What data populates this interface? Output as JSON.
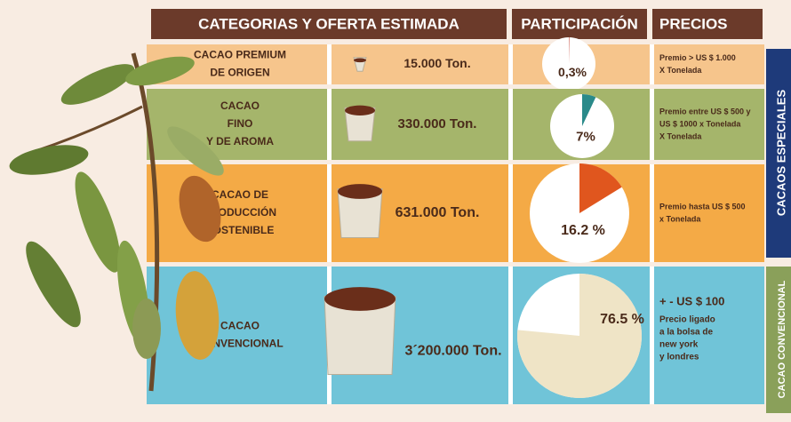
{
  "header": {
    "categories": "CATEGORIAS Y OFERTA ESTIMADA",
    "share": "PARTICIPACIÓN",
    "prices": "PRECIOS"
  },
  "rows": [
    {
      "category": [
        "CACAO PREMIUM",
        "DE ORIGEN"
      ],
      "supply": "15.000 Ton.",
      "share": {
        "value": 0.3,
        "label": "0,3%"
      },
      "price": [
        "Premio > US $ 1.000",
        "X Tonelada"
      ]
    },
    {
      "category": [
        "CACAO",
        "FINO",
        "Y DE AROMA"
      ],
      "supply": "330.000 Ton.",
      "share": {
        "value": 7,
        "label": "7%"
      },
      "price": [
        "Premio entre US $ 500 y",
        "US $ 1000 x Tonelada",
        "X Tonelada"
      ]
    },
    {
      "category": [
        "CACAO DE",
        "PRODUCCIÓN",
        "SOSTENIBLE"
      ],
      "supply": "631.000 Ton.",
      "share": {
        "value": 16.2,
        "label": "16.2 %"
      },
      "price": [
        "Premio hasta US $ 500",
        "x Tonelada"
      ]
    },
    {
      "category": [
        "CACAO",
        "CONVENCIONAL"
      ],
      "supply": "3´200.000 Ton.",
      "share": {
        "value": 76.5,
        "label": "76.5 %"
      },
      "price": [
        "+ - US $ 100",
        "Precio ligado",
        "a la bolsa de",
        "new york",
        "y londres"
      ]
    }
  ],
  "groups": [
    "CACAOS ESPECIALES",
    "CACAO CONVENCIONAL"
  ]
}
